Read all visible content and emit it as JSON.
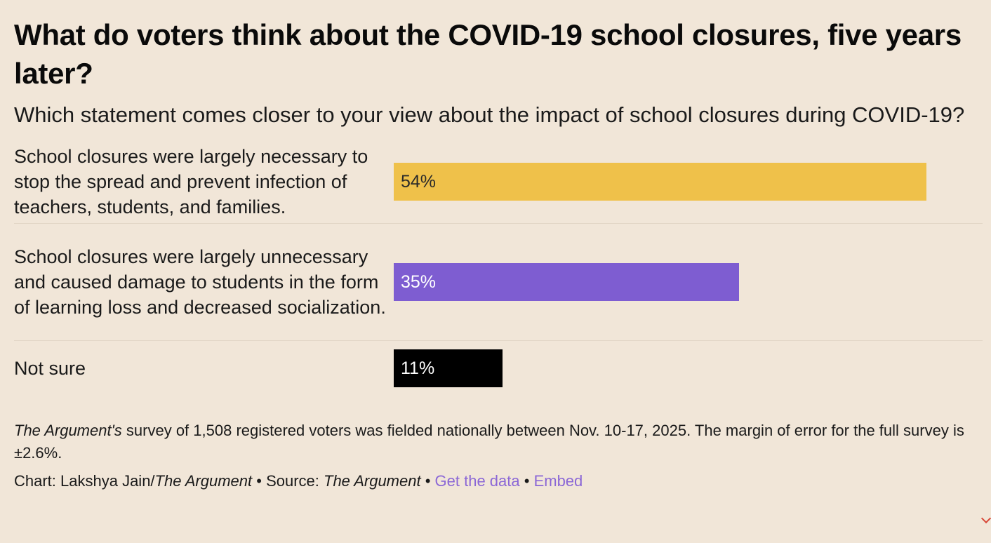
{
  "chart_data": {
    "type": "bar",
    "title": "What do voters think about the COVID-19 school closures, five years later?",
    "subtitle": "Which statement comes closer to your view about the impact of school closures during COVID-19?",
    "categories": [
      "School closures were largely necessary to stop the spread and prevent infection of teachers, students, and families.",
      "School closures were largely unnecessary and caused damage to students in the form of learning loss and decreased socialization.",
      "Not sure"
    ],
    "values": [
      54,
      35,
      11
    ],
    "value_labels": [
      "54%",
      "35%",
      "11%"
    ],
    "colors": [
      "#efc14a",
      "#7e5dd1",
      "#000000"
    ],
    "label_colors": [
      "#2a2a2a",
      "#ffffff",
      "#ffffff"
    ],
    "xlim": [
      0,
      100
    ],
    "orientation": "horizontal"
  },
  "notes": {
    "survey_name": "The Argument's",
    "survey_text": " survey of 1,508 registered voters was fielded nationally between Nov. 10-17, 2025. The margin of error for the full survey is ±2.6%."
  },
  "credits": {
    "chart_prefix": "Chart: Lakshya Jain/",
    "chart_outlet": "The Argument",
    "separator1": " • Source: ",
    "source_outlet": "The Argument",
    "separator2": " • ",
    "get_data_label": "Get the data",
    "separator3": " • ",
    "embed_label": "Embed"
  }
}
